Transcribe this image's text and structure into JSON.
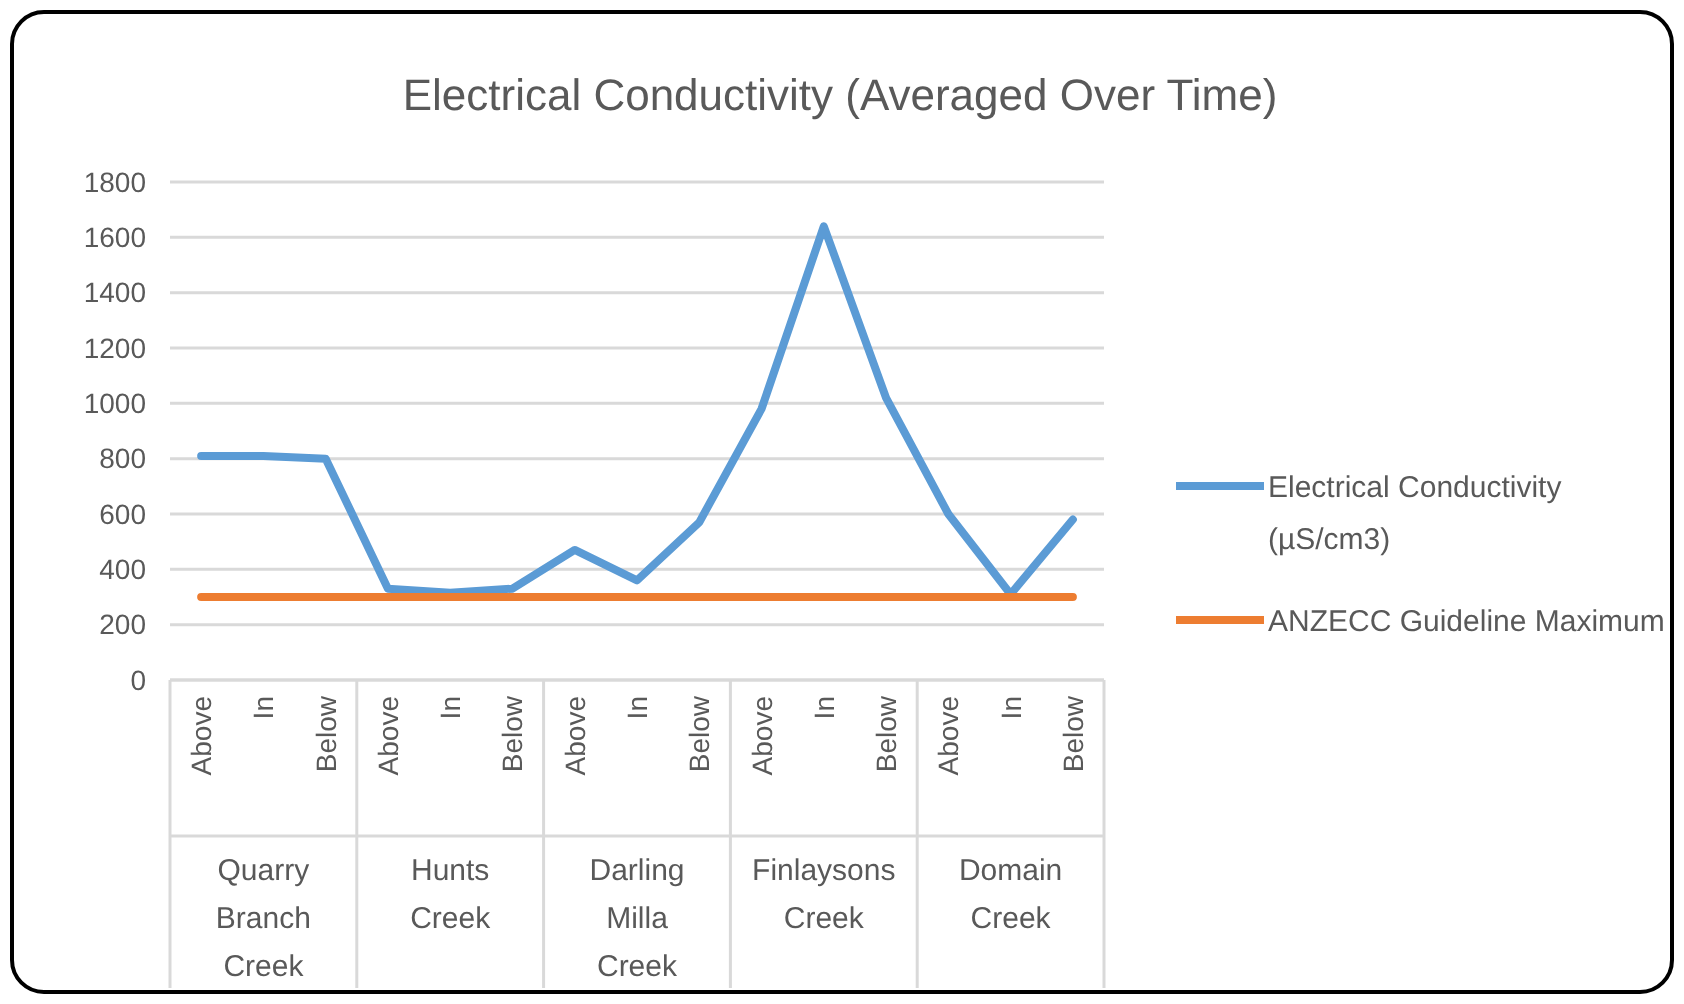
{
  "chart_data": {
    "type": "line",
    "title": "Electrical Conductivity (Averaged Over Time)",
    "categories": [
      "Above",
      "In",
      "Below",
      "Above",
      "In",
      "Below",
      "Above",
      "In",
      "Below",
      "Above",
      "In",
      "Below",
      "Above",
      "In",
      "Below"
    ],
    "series": [
      {
        "name": "Electrical Conductivity (µS/cm3)",
        "color": "#5b9bd5",
        "values": [
          810,
          810,
          800,
          330,
          315,
          330,
          470,
          360,
          570,
          980,
          1640,
          1020,
          600,
          310,
          580
        ]
      },
      {
        "name": "ANZECC Guideline Maximum",
        "color": "#ed7d31",
        "values": [
          300,
          300,
          300,
          300,
          300,
          300,
          300,
          300,
          300,
          300,
          300,
          300,
          300,
          300,
          300
        ]
      }
    ],
    "annotations": [
      "Quarry Branch Creek",
      "Hunts Creek",
      "Darling Milla Creek",
      "Finlaysons Creek",
      "Domain Creek"
    ],
    "ylim": [
      0,
      1800
    ],
    "yticks": [
      0,
      200,
      400,
      600,
      800,
      1000,
      1200,
      1400,
      1600,
      1800
    ],
    "grid": "y",
    "legend": "right",
    "marker": "none",
    "line_style": "solid"
  }
}
